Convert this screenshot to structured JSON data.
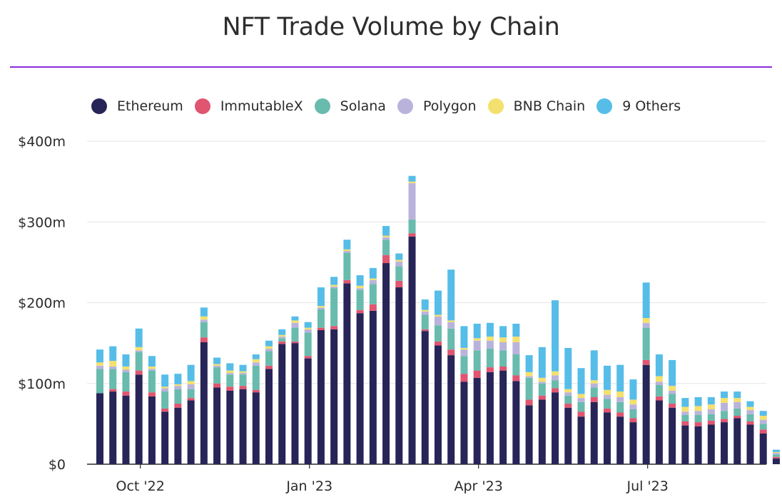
{
  "chart_data": {
    "type": "bar",
    "stacked": true,
    "title": "NFT Trade Volume by Chain",
    "xlabel": "",
    "ylabel": "",
    "ylim": [
      0,
      400
    ],
    "y_unit": "millions USD",
    "grid": true,
    "legend_position": "top",
    "x_tick_labels": [
      {
        "label": "Oct '22",
        "index": 3
      },
      {
        "label": "Jan '23",
        "index": 16
      },
      {
        "label": "Apr '23",
        "index": 29
      },
      {
        "label": "Jul '23",
        "index": 42
      }
    ],
    "y_tick_labels": [
      {
        "label": "$0",
        "value": 0
      },
      {
        "label": "$100m",
        "value": 100
      },
      {
        "label": "$200m",
        "value": 200
      },
      {
        "label": "$300m",
        "value": 300
      },
      {
        "label": "$400m",
        "value": 400
      }
    ],
    "series": [
      {
        "name": "Ethereum",
        "color": "#272458",
        "values": [
          88,
          90,
          85,
          111,
          84,
          65,
          70,
          79,
          151,
          95,
          91,
          93,
          89,
          118,
          149,
          150,
          131,
          166,
          167,
          224,
          187,
          190,
          249,
          219,
          282,
          165,
          147,
          135,
          102,
          107,
          114,
          116,
          103,
          73,
          80,
          89,
          70,
          59,
          77,
          64,
          59,
          52,
          123,
          79,
          70,
          48,
          47,
          49,
          52,
          57,
          49,
          38,
          7
        ]
      },
      {
        "name": "ImmutableX",
        "color": "#e05570",
        "values": [
          0,
          3,
          5,
          5,
          5,
          4,
          5,
          3,
          6,
          5,
          5,
          4,
          3,
          4,
          3,
          2,
          3,
          3,
          4,
          4,
          4,
          8,
          10,
          8,
          4,
          2,
          5,
          7,
          10,
          9,
          6,
          5,
          7,
          7,
          5,
          5,
          5,
          6,
          6,
          5,
          5,
          5,
          6,
          5,
          5,
          5,
          5,
          5,
          4,
          3,
          4,
          5,
          2
        ]
      },
      {
        "name": "Solana",
        "color": "#68bbad",
        "values": [
          30,
          25,
          24,
          23,
          27,
          21,
          18,
          11,
          19,
          20,
          15,
          14,
          30,
          18,
          4,
          17,
          29,
          23,
          47,
          34,
          25,
          25,
          19,
          18,
          17,
          18,
          20,
          26,
          22,
          25,
          23,
          20,
          26,
          27,
          15,
          10,
          10,
          12,
          12,
          12,
          13,
          11,
          40,
          14,
          12,
          8,
          9,
          8,
          10,
          9,
          9,
          7,
          3
        ]
      },
      {
        "name": "Polygon",
        "color": "#b9b3dc",
        "values": [
          4,
          3,
          3,
          2,
          2,
          4,
          4,
          6,
          3,
          2,
          2,
          2,
          4,
          3,
          2,
          6,
          4,
          2,
          2,
          2,
          2,
          5,
          3,
          6,
          45,
          4,
          11,
          8,
          8,
          12,
          10,
          10,
          15,
          2,
          2,
          6,
          4,
          5,
          5,
          5,
          6,
          6,
          6,
          4,
          4,
          4,
          5,
          6,
          10,
          8,
          5,
          5,
          2
        ]
      },
      {
        "name": "BNB Chain",
        "color": "#f4e06e",
        "values": [
          4,
          7,
          4,
          4,
          3,
          2,
          2,
          4,
          4,
          2,
          3,
          2,
          4,
          3,
          2,
          3,
          2,
          2,
          2,
          2,
          3,
          2,
          2,
          2,
          2,
          2,
          2,
          2,
          2,
          3,
          5,
          6,
          7,
          5,
          5,
          5,
          4,
          5,
          4,
          6,
          7,
          6,
          6,
          7,
          6,
          6,
          6,
          6,
          6,
          5,
          4,
          5,
          1
        ]
      },
      {
        "name": "9 Others",
        "color": "#56bde8",
        "values": [
          16,
          18,
          15,
          23,
          13,
          15,
          13,
          20,
          11,
          8,
          9,
          8,
          6,
          7,
          7,
          5,
          7,
          23,
          10,
          12,
          13,
          13,
          12,
          8,
          7,
          13,
          30,
          63,
          27,
          18,
          17,
          14,
          16,
          21,
          38,
          88,
          51,
          32,
          37,
          30,
          33,
          25,
          44,
          27,
          32,
          11,
          11,
          9,
          8,
          8,
          7,
          6,
          3
        ]
      }
    ]
  }
}
